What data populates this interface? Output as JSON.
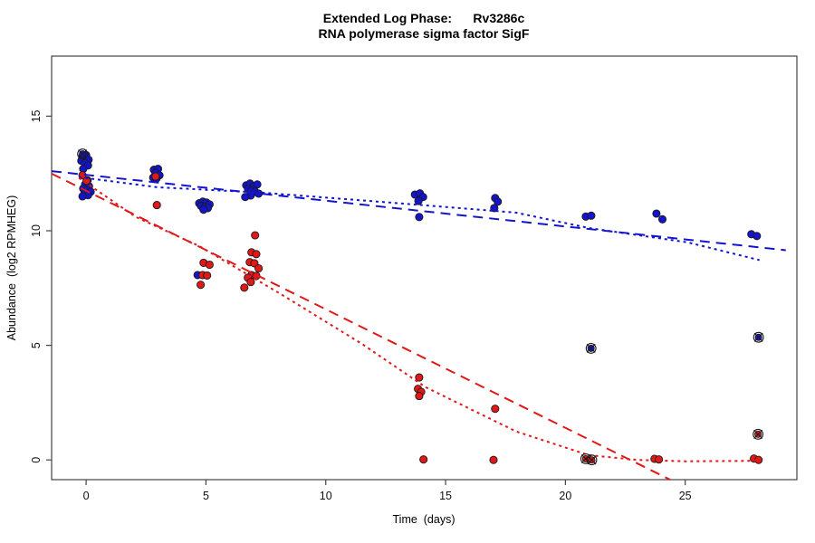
{
  "figure": {
    "title_line1": "Extended Log Phase:      Rv3286c",
    "title_line2": "RNA polymerase sigma factor SigF"
  },
  "chart_data": {
    "type": "scatter",
    "title": "Extended Log Phase: Rv3286c",
    "subtitle": "RNA polymerase sigma factor SigF",
    "xlabel": "Time  (days)",
    "ylabel": "Abundance  (log2 RPMHEG)",
    "x_ticks": [
      0,
      5,
      10,
      15,
      20,
      25
    ],
    "y_ticks": [
      0,
      5,
      10,
      15
    ],
    "xlim": [
      -1.44,
      29.66
    ],
    "ylim": [
      -0.86,
      17.62
    ],
    "grid": "off",
    "legend": "none",
    "colors": {
      "blue": "#1414cc",
      "red": "#e01818",
      "marker_outline": "#1a1a1a",
      "axis": "#444444"
    },
    "series": [
      {
        "name": "blue-points",
        "type": "points",
        "color": "blue",
        "points": [
          [
            -0.15,
            13.25
          ],
          [
            0.0,
            13.3
          ],
          [
            0.1,
            13.1
          ],
          [
            -0.2,
            13.05
          ],
          [
            -0.05,
            12.95
          ],
          [
            0.08,
            12.85
          ],
          [
            -0.12,
            12.7
          ],
          [
            0.06,
            12.2
          ],
          [
            -0.04,
            12.02
          ],
          [
            0.12,
            11.94
          ],
          [
            -0.12,
            11.84
          ],
          [
            0.04,
            11.76
          ],
          [
            0.19,
            11.7
          ],
          [
            -0.08,
            11.6
          ],
          [
            0.08,
            11.55
          ],
          [
            -0.15,
            11.5
          ],
          [
            2.83,
            12.66
          ],
          [
            3.0,
            12.7
          ],
          [
            2.9,
            12.52
          ],
          [
            3.06,
            12.42
          ],
          [
            2.8,
            12.32
          ],
          [
            2.94,
            12.28
          ],
          [
            4.72,
            11.2
          ],
          [
            4.87,
            11.27
          ],
          [
            5.02,
            11.23
          ],
          [
            5.15,
            11.15
          ],
          [
            4.8,
            11.08
          ],
          [
            4.95,
            11.03
          ],
          [
            5.08,
            10.99
          ],
          [
            4.9,
            10.92
          ],
          [
            4.65,
            8.07
          ],
          [
            6.68,
            11.98
          ],
          [
            6.84,
            12.06
          ],
          [
            7.0,
            11.94
          ],
          [
            7.14,
            12.02
          ],
          [
            6.76,
            11.82
          ],
          [
            6.9,
            11.74
          ],
          [
            7.05,
            11.7
          ],
          [
            7.2,
            11.62
          ],
          [
            6.87,
            11.54
          ],
          [
            6.64,
            11.47
          ],
          [
            13.72,
            11.58
          ],
          [
            13.93,
            11.63
          ],
          [
            14.06,
            11.47
          ],
          [
            13.87,
            11.3
          ],
          [
            13.9,
            10.6
          ],
          [
            17.07,
            11.43
          ],
          [
            17.18,
            11.27
          ],
          [
            17.03,
            10.99
          ],
          [
            20.85,
            10.62
          ],
          [
            21.08,
            10.66
          ],
          [
            23.8,
            10.75
          ],
          [
            24.05,
            10.5
          ],
          [
            27.76,
            9.85
          ],
          [
            27.99,
            9.77
          ]
        ]
      },
      {
        "name": "red-points",
        "type": "points",
        "color": "red",
        "points": [
          [
            -0.15,
            12.42
          ],
          [
            0.02,
            12.18
          ],
          [
            2.9,
            12.37
          ],
          [
            2.95,
            11.12
          ],
          [
            4.9,
            8.6
          ],
          [
            5.15,
            8.52
          ],
          [
            4.86,
            8.07
          ],
          [
            5.05,
            8.05
          ],
          [
            4.78,
            7.64
          ],
          [
            7.05,
            9.8
          ],
          [
            6.9,
            9.06
          ],
          [
            7.1,
            8.98
          ],
          [
            6.83,
            8.63
          ],
          [
            7.02,
            8.58
          ],
          [
            7.2,
            8.36
          ],
          [
            6.9,
            8.07
          ],
          [
            7.1,
            8.03
          ],
          [
            6.75,
            7.95
          ],
          [
            6.87,
            7.76
          ],
          [
            6.6,
            7.52
          ],
          [
            13.9,
            3.6
          ],
          [
            13.85,
            3.1
          ],
          [
            13.98,
            2.97
          ],
          [
            13.9,
            2.79
          ],
          [
            14.08,
            0.02
          ],
          [
            17.07,
            2.23
          ],
          [
            17.0,
            0.0
          ],
          [
            23.72,
            0.05
          ],
          [
            23.9,
            0.02
          ],
          [
            27.87,
            0.06
          ],
          [
            28.06,
            0.0
          ]
        ]
      },
      {
        "name": "blue-censored-points",
        "type": "points",
        "marker": "circle-x",
        "color": "blue",
        "points": [
          [
            -0.15,
            13.35
          ],
          [
            21.07,
            4.87
          ],
          [
            28.06,
            5.35
          ]
        ]
      },
      {
        "name": "red-censored-points",
        "type": "points",
        "marker": "circle-x",
        "color": "red",
        "points": [
          [
            20.85,
            0.05
          ],
          [
            21.1,
            0.0
          ],
          [
            28.04,
            1.12
          ]
        ]
      },
      {
        "name": "blue-linear-fit",
        "type": "line",
        "style": "dashed",
        "color": "blue",
        "points": [
          [
            -1.44,
            12.6
          ],
          [
            29.2,
            9.15
          ]
        ]
      },
      {
        "name": "blue-smooth-fit",
        "type": "line",
        "style": "dotted",
        "color": "blue",
        "points": [
          [
            -0.3,
            12.34
          ],
          [
            2.98,
            11.9
          ],
          [
            7.37,
            11.66
          ],
          [
            13.3,
            11.18
          ],
          [
            17.95,
            10.79
          ],
          [
            20.97,
            10.12
          ],
          [
            25.12,
            9.49
          ],
          [
            28.1,
            8.72
          ]
        ]
      },
      {
        "name": "red-linear-fit",
        "type": "line",
        "style": "dashed",
        "color": "red",
        "points": [
          [
            -1.44,
            12.49
          ],
          [
            24.37,
            -0.86
          ]
        ]
      },
      {
        "name": "red-smooth-fit",
        "type": "line",
        "style": "dotted",
        "color": "red",
        "points": [
          [
            -0.3,
            12.3
          ],
          [
            2.08,
            10.6
          ],
          [
            4.72,
            9.33
          ],
          [
            8.12,
            7.24
          ],
          [
            11.5,
            5.07
          ],
          [
            14.17,
            3.17
          ],
          [
            17.95,
            1.24
          ],
          [
            20.97,
            0.21
          ],
          [
            23.0,
            0.0
          ],
          [
            25.0,
            -0.06
          ],
          [
            28.1,
            -0.04
          ]
        ]
      }
    ]
  }
}
